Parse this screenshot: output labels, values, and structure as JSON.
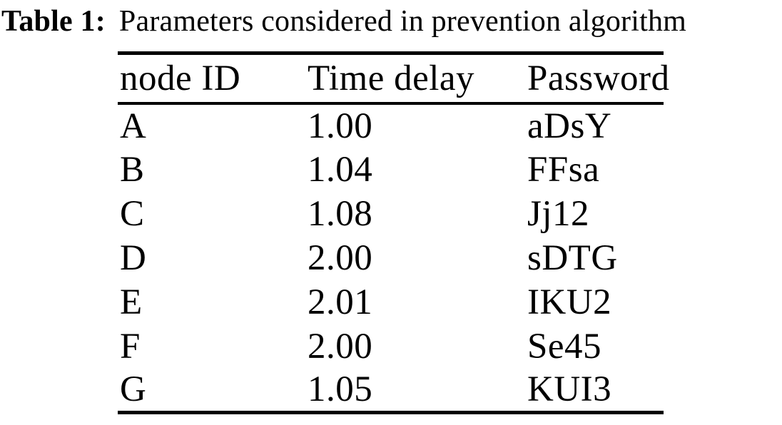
{
  "caption": {
    "label": "Table 1:",
    "text": "Parameters considered in prevention algorithm"
  },
  "table": {
    "columns": [
      "node ID",
      "Time delay",
      "Password"
    ],
    "rows": [
      [
        "A",
        "1.00",
        "aDsY"
      ],
      [
        "B",
        "1.04",
        "FFsa"
      ],
      [
        "C",
        "1.08",
        "Jj12"
      ],
      [
        "D",
        "2.00",
        "sDTG"
      ],
      [
        "E",
        "2.01",
        "IKU2"
      ],
      [
        "F",
        "2.00",
        "Se45"
      ],
      [
        "G",
        "1.05",
        "KUI3"
      ]
    ]
  },
  "chart_data": {
    "type": "table",
    "title": "Table 1: Parameters considered in prevention algorithm",
    "columns": [
      "node ID",
      "Time delay",
      "Password"
    ],
    "rows": [
      [
        "A",
        "1.00",
        "aDsY"
      ],
      [
        "B",
        "1.04",
        "FFsa"
      ],
      [
        "C",
        "1.08",
        "Jj12"
      ],
      [
        "D",
        "2.00",
        "sDTG"
      ],
      [
        "E",
        "2.01",
        "IKU2"
      ],
      [
        "F",
        "2.00",
        "Se45"
      ],
      [
        "G",
        "1.05",
        "KUI3"
      ]
    ]
  },
  "colors": {
    "text": "#000000",
    "background": "#ffffff",
    "rule": "#000000"
  }
}
